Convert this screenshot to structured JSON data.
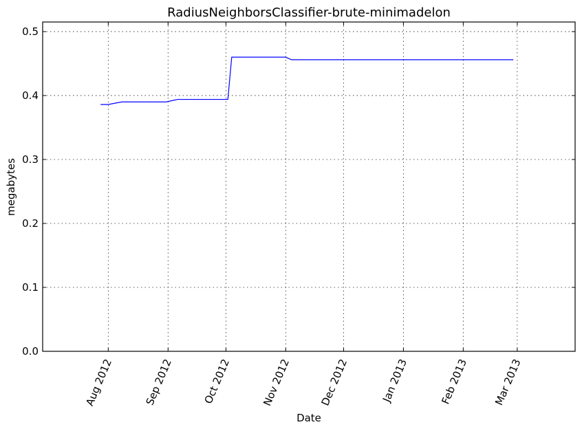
{
  "chart_data": {
    "type": "line",
    "title": "RadiusNeighborsClassifier-brute-minimadelon",
    "xlabel": "Date",
    "ylabel": "megabytes",
    "x_axis_type": "date",
    "xlim": [
      "2012-06-28",
      "2013-03-31"
    ],
    "ylim": [
      0,
      0.515
    ],
    "grid": true,
    "x_ticks": [
      {
        "value": "2012-08-01",
        "label": "Aug 2012"
      },
      {
        "value": "2012-09-01",
        "label": "Sep 2012"
      },
      {
        "value": "2012-10-01",
        "label": "Oct 2012"
      },
      {
        "value": "2012-11-01",
        "label": "Nov 2012"
      },
      {
        "value": "2012-12-01",
        "label": "Dec 2012"
      },
      {
        "value": "2013-01-01",
        "label": "Jan 2013"
      },
      {
        "value": "2013-02-01",
        "label": "Feb 2013"
      },
      {
        "value": "2013-03-01",
        "label": "Mar 2013"
      }
    ],
    "y_ticks": [
      {
        "value": 0.0,
        "label": "0.0"
      },
      {
        "value": 0.1,
        "label": "0.1"
      },
      {
        "value": 0.2,
        "label": "0.2"
      },
      {
        "value": 0.3,
        "label": "0.3"
      },
      {
        "value": 0.4,
        "label": "0.4"
      },
      {
        "value": 0.5,
        "label": "0.5"
      }
    ],
    "series": [
      {
        "color": "#0000ff",
        "points": [
          {
            "x": "2012-07-28",
            "y": 0.386
          },
          {
            "x": "2012-08-01",
            "y": 0.386
          },
          {
            "x": "2012-08-08",
            "y": 0.39
          },
          {
            "x": "2012-08-31",
            "y": 0.39
          },
          {
            "x": "2012-09-06",
            "y": 0.394
          },
          {
            "x": "2012-10-02",
            "y": 0.394
          },
          {
            "x": "2012-10-04",
            "y": 0.46
          },
          {
            "x": "2012-11-01",
            "y": 0.46
          },
          {
            "x": "2012-11-04",
            "y": 0.456
          },
          {
            "x": "2013-02-27",
            "y": 0.456
          }
        ]
      }
    ]
  }
}
